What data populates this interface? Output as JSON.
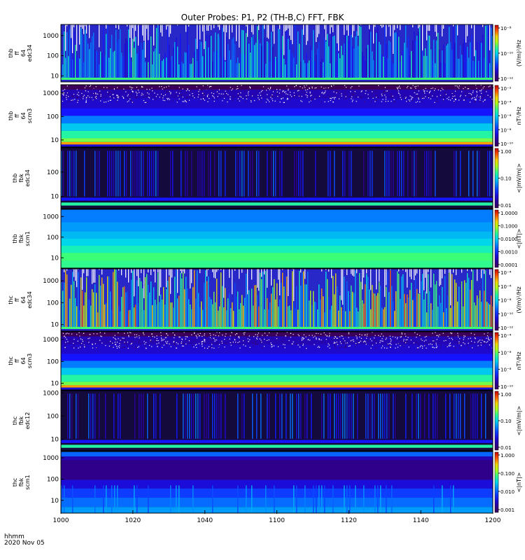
{
  "title": "Outer Probes: P1, P2 (TH-B,C) FFT, FBK",
  "footer": {
    "time_label": "hhmm",
    "date_label": "2020 Nov 05"
  },
  "chart_data": {
    "type": "heatmap",
    "title": "Outer Probes: P1, P2 (TH-B,C) FFT, FBK",
    "x_ticks": [
      "1000",
      "1020",
      "1040",
      "1100",
      "1120",
      "1140",
      "1200"
    ],
    "x_label": "hhmm",
    "date": "2020 Nov 05",
    "panels": [
      {
        "id": "thb-ff-b4-edc34",
        "ylabel": [
          "thb",
          "ff",
          "64",
          "edc34"
        ],
        "yticks": [
          "1000",
          "100",
          "10"
        ],
        "ylog_range": [
          0.7,
          3.55
        ],
        "style": "wave",
        "cbar_unit": "(V/m)²/Hz",
        "cbar_ticks": [
          "10⁻⁸",
          "10⁻¹⁰",
          "10⁻¹²"
        ]
      },
      {
        "id": "thb-ff-b4-scm3",
        "ylabel": [
          "thb",
          "ff",
          "64",
          "scm3"
        ],
        "yticks": [
          "1000",
          "100",
          "10"
        ],
        "ylog_range": [
          0.7,
          3.35
        ],
        "style": "bands",
        "cbar_unit": "nT²/Hz",
        "cbar_ticks": [
          "10⁻²",
          "10⁻⁴",
          "10⁻⁶",
          "10⁻⁸",
          "10⁻¹⁰"
        ]
      },
      {
        "id": "thb-fbk-edc34",
        "ylabel": [
          "thb",
          "fbk",
          "edc34"
        ],
        "yticks": [
          "100",
          "10"
        ],
        "ylog_range": [
          0.5,
          3.0
        ],
        "style": "fbk_dark",
        "cbar_unit": "<|mV/m|>",
        "cbar_ticks": [
          "1.00",
          "0.10",
          "0.01"
        ]
      },
      {
        "id": "thb-fbk-scm1",
        "ylabel": [
          "thb",
          "fbk",
          "scm1"
        ],
        "yticks": [
          "1000",
          "100",
          "10"
        ],
        "ylog_range": [
          0.5,
          3.35
        ],
        "style": "fbk_bands",
        "cbar_unit": "<|nT|>",
        "cbar_ticks": [
          "1.0000",
          "0.1000",
          "0.0100",
          "0.0010",
          "0.0001"
        ]
      },
      {
        "id": "thc-ff-b4-edc34",
        "ylabel": [
          "thc",
          "ff",
          "64",
          "edc34"
        ],
        "yticks": [
          "1000",
          "100",
          "10"
        ],
        "ylog_range": [
          0.7,
          3.55
        ],
        "style": "wave_hot",
        "cbar_unit": "(V/m)²/Hz",
        "cbar_ticks": [
          "10⁻⁴",
          "10⁻⁶",
          "10⁻⁸",
          "10⁻¹⁰",
          "10⁻¹²"
        ]
      },
      {
        "id": "thc-ff-b4-scm3",
        "ylabel": [
          "thc",
          "ff",
          "64",
          "scm3"
        ],
        "yticks": [
          "1000",
          "100",
          "10"
        ],
        "ylog_range": [
          0.7,
          3.35
        ],
        "style": "bands",
        "cbar_unit": "nT²/Hz",
        "cbar_ticks": [
          "10⁻⁴",
          "10⁻⁶",
          "10⁻⁸",
          "10⁻¹⁰"
        ]
      },
      {
        "id": "thc-fbk-edc12",
        "ylabel": [
          "thc",
          "fbk",
          "edc12"
        ],
        "yticks": [
          "1000",
          "100",
          "10"
        ],
        "ylog_range": [
          0.5,
          3.1
        ],
        "style": "fbk_dark",
        "cbar_unit": "<|mV/m|>",
        "cbar_ticks": [
          "1.00",
          "0.10",
          "0.01"
        ]
      },
      {
        "id": "thc-fbk-scm1",
        "ylabel": [
          "thc",
          "fbk",
          "scm1"
        ],
        "yticks": [
          "1000",
          "100",
          "10"
        ],
        "ylog_range": [
          0.4,
          3.3
        ],
        "style": "fbk_scm_c",
        "cbar_unit": "<|nT|>",
        "cbar_ticks": [
          "1.000",
          "0.100",
          "0.010",
          "0.001"
        ]
      }
    ]
  }
}
